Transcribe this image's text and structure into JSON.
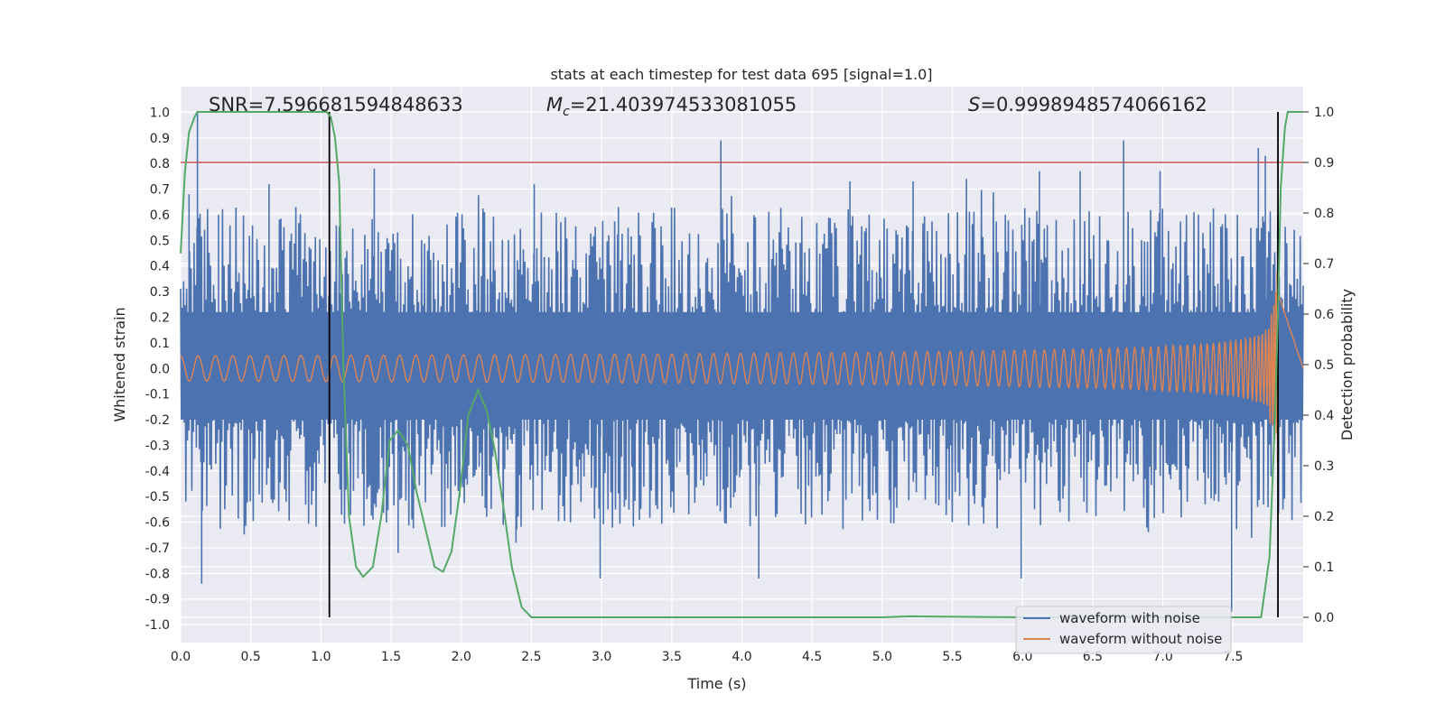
{
  "chart_data": {
    "type": "line",
    "title": "stats at each timestep for test data 695 [signal=1.0]",
    "xlabel": "Time (s)",
    "ylabel_left": "Whitened strain",
    "ylabel_right": "Detection probability",
    "xlim": [
      0.0,
      8.0
    ],
    "ylim_left": [
      -1.07,
      1.1
    ],
    "ylim_right": [
      -0.05,
      1.05
    ],
    "x_ticks": [
      0.0,
      0.5,
      1.0,
      1.5,
      2.0,
      2.5,
      3.0,
      3.5,
      4.0,
      4.5,
      5.0,
      5.5,
      6.0,
      6.5,
      7.0,
      7.5
    ],
    "x_tick_labels": [
      "0.0",
      "0.5",
      "1.0",
      "1.5",
      "2.0",
      "2.5",
      "3.0",
      "3.5",
      "4.0",
      "4.5",
      "5.0",
      "5.5",
      "6.0",
      "6.5",
      "7.0",
      "7.5"
    ],
    "y_left_ticks": [
      1.0,
      0.9,
      0.8,
      0.7,
      0.6,
      0.5,
      0.4,
      0.3,
      0.2,
      0.1,
      0.0,
      -0.1,
      -0.2,
      -0.3,
      -0.4,
      -0.5,
      -0.6,
      -0.7,
      -0.8,
      -0.9,
      -1.0
    ],
    "y_left_tick_labels": [
      "1.0",
      "0.9",
      "0.8",
      "0.7",
      "0.6",
      "0.5",
      "0.4",
      "0.3",
      "0.2",
      "0.1",
      "0.0",
      "-0.1",
      "-0.2",
      "-0.3",
      "-0.4",
      "-0.5",
      "-0.6",
      "-0.7",
      "-0.8",
      "-0.9",
      "-1.0"
    ],
    "y_right_ticks": [
      1.0,
      0.9,
      0.8,
      0.7,
      0.6,
      0.5,
      0.4,
      0.3,
      0.2,
      0.1,
      0.0
    ],
    "y_right_tick_labels": [
      "1.0",
      "0.9",
      "0.8",
      "0.7",
      "0.6",
      "0.5",
      "0.4",
      "0.3",
      "0.2",
      "0.1",
      "0.0"
    ],
    "grid": true,
    "legend_position": "lower-right",
    "annotations": {
      "snr": "SNR=7.596681594848633",
      "mc_symbol": "M",
      "mc_sub": "c",
      "mc_value": "=21.403974533081055",
      "s_symbol": "S",
      "s_value": "=0.9998948574066162"
    },
    "threshold_right": 0.9,
    "vertical_markers_x": [
      1.06,
      7.82
    ],
    "series": [
      {
        "name": "waveform with noise",
        "color": "#4c72b0",
        "axis": "left",
        "noise_envelope": 0.45,
        "peak_spikes": [
          [
            0.12,
            1.0
          ],
          [
            0.15,
            -0.84
          ],
          [
            0.06,
            0.68
          ],
          [
            0.27,
            0.6
          ],
          [
            0.63,
            0.72
          ],
          [
            1.38,
            0.78
          ],
          [
            1.55,
            -0.72
          ],
          [
            2.39,
            -0.68
          ],
          [
            2.99,
            -0.82
          ],
          [
            3.12,
            0.63
          ],
          [
            3.85,
            0.89
          ],
          [
            4.12,
            -0.82
          ],
          [
            4.77,
            0.73
          ],
          [
            5.22,
            0.73
          ],
          [
            5.99,
            -0.82
          ],
          [
            6.41,
            0.77
          ],
          [
            6.72,
            0.89
          ],
          [
            6.98,
            0.77
          ],
          [
            7.49,
            -0.95
          ],
          [
            7.68,
            0.86
          ],
          [
            7.73,
            0.83
          ],
          [
            5.6,
            0.74
          ],
          [
            2.52,
            0.72
          ],
          [
            6.12,
            0.77
          ]
        ]
      },
      {
        "name": "waveform without noise",
        "color": "#dd8452",
        "axis": "left",
        "chirp_merger_x": 7.82,
        "chirp_peak_amplitude": 0.4
      },
      {
        "name": "detection probability",
        "color": "#55a868",
        "axis": "right",
        "x": [
          0.0,
          0.03,
          0.06,
          0.1,
          0.12,
          0.16,
          0.2,
          0.4,
          0.6,
          0.8,
          1.0,
          1.04,
          1.07,
          1.1,
          1.13,
          1.16,
          1.2,
          1.25,
          1.3,
          1.37,
          1.43,
          1.49,
          1.55,
          1.62,
          1.68,
          1.74,
          1.81,
          1.87,
          1.93,
          1.99,
          2.05,
          2.12,
          2.18,
          2.24,
          2.31,
          2.36,
          2.43,
          2.5,
          2.6,
          3.0,
          4.0,
          5.0,
          5.2,
          6.0,
          6.5,
          7.0,
          7.5,
          7.7,
          7.76,
          7.8,
          7.82,
          7.84,
          7.87,
          7.89,
          7.92,
          8.0
        ],
        "y": [
          0.72,
          0.88,
          0.96,
          0.99,
          1.0,
          1.0,
          1.0,
          1.0,
          1.0,
          1.0,
          1.0,
          1.0,
          0.99,
          0.95,
          0.86,
          0.5,
          0.2,
          0.1,
          0.08,
          0.1,
          0.2,
          0.35,
          0.37,
          0.34,
          0.25,
          0.18,
          0.1,
          0.09,
          0.13,
          0.25,
          0.4,
          0.45,
          0.41,
          0.33,
          0.2,
          0.1,
          0.02,
          0.0,
          0.0,
          0.0,
          0.0,
          0.0,
          0.002,
          0.0,
          0.0,
          0.0,
          0.0,
          0.0,
          0.12,
          0.4,
          0.6,
          0.85,
          0.97,
          1.0,
          1.0,
          1.0
        ]
      }
    ]
  }
}
